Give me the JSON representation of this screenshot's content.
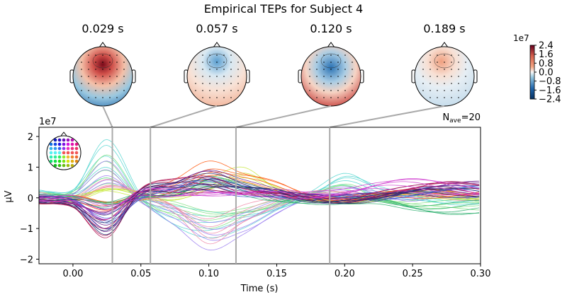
{
  "chart_data": {
    "type": "line",
    "title": "Empirical TEPs for Subject 4",
    "xlabel": "Time (s)",
    "ylabel": "µV",
    "y_scale_label": "1e7",
    "xlim": [
      -0.025,
      0.3
    ],
    "ylim": [
      -2.15,
      2.3
    ],
    "x_ticks": [
      "0.00",
      "0.05",
      "0.10",
      "0.15",
      "0.20",
      "0.25",
      "0.30"
    ],
    "y_ticks": [
      "−2",
      "−1",
      "0",
      "1",
      "2"
    ],
    "nave_label": "N",
    "nave_sub": "ave",
    "nave_value": "=20",
    "grid": false,
    "x": [
      -0.025,
      0,
      0.025,
      0.05,
      0.075,
      0.1,
      0.125,
      0.15,
      0.175,
      0.2,
      0.225,
      0.25,
      0.275,
      0.3
    ],
    "series": [
      {
        "color": "#55d6d0",
        "values": [
          0.25,
          0.2,
          1.9,
          0.1,
          -0.9,
          -1.3,
          -1.0,
          -0.4,
          0.2,
          0.8,
          0.3,
          0.1,
          -0.1,
          -0.2
        ]
      },
      {
        "color": "#7fe07f",
        "values": [
          0.1,
          0.1,
          1.4,
          0.0,
          -0.6,
          -1.0,
          -0.6,
          -0.2,
          0.1,
          0.4,
          0.0,
          -0.2,
          -0.3,
          -0.4
        ]
      },
      {
        "color": "#9a7cf0",
        "values": [
          0.0,
          0.1,
          1.2,
          -0.1,
          -0.9,
          -1.7,
          -1.2,
          -0.5,
          0.0,
          0.3,
          0.2,
          0.0,
          0.1,
          0.0
        ]
      },
      {
        "color": "#f08aa8",
        "values": [
          0.1,
          0.0,
          0.6,
          0.1,
          -0.5,
          -1.5,
          -0.8,
          -0.3,
          0.1,
          0.2,
          0.1,
          0.2,
          0.0,
          0.1
        ]
      },
      {
        "color": "#c7e83a",
        "values": [
          0.0,
          0.0,
          0.3,
          0.1,
          0.1,
          0.6,
          1.0,
          0.3,
          0.0,
          -0.1,
          0.0,
          0.1,
          0.2,
          0.1
        ]
      },
      {
        "color": "#ff5a10",
        "values": [
          -0.1,
          -0.1,
          -0.4,
          0.1,
          0.6,
          1.2,
          0.8,
          0.5,
          0.1,
          0.0,
          0.1,
          0.2,
          0.3,
          0.3
        ]
      },
      {
        "color": "#30b070",
        "values": [
          0.0,
          -0.1,
          -0.3,
          0.2,
          0.2,
          0.7,
          0.4,
          0.0,
          -0.1,
          -0.2,
          -0.2,
          -0.4,
          -0.5,
          -0.5
        ]
      },
      {
        "color": "#4060d0",
        "values": [
          -0.1,
          -0.2,
          -1.0,
          0.1,
          0.4,
          0.6,
          0.4,
          0.2,
          0.0,
          0.0,
          0.1,
          0.3,
          0.4,
          0.4
        ]
      },
      {
        "color": "#6a1a8a",
        "values": [
          -0.1,
          -0.2,
          -1.1,
          0.2,
          0.5,
          0.9,
          0.6,
          0.3,
          0.0,
          0.0,
          0.2,
          0.4,
          0.5,
          0.5
        ]
      },
      {
        "color": "#b01050",
        "values": [
          -0.2,
          -0.3,
          -1.3,
          0.3,
          0.6,
          0.7,
          0.3,
          0.1,
          -0.1,
          -0.1,
          0.2,
          0.4,
          0.5,
          0.4
        ]
      },
      {
        "color": "#203070",
        "values": [
          -0.1,
          -0.2,
          -1.2,
          0.2,
          0.5,
          0.8,
          0.5,
          0.2,
          -0.1,
          -0.1,
          0.0,
          0.2,
          0.3,
          0.3
        ]
      },
      {
        "color": "#d040d0",
        "values": [
          0.0,
          -0.1,
          -0.7,
          0.2,
          0.3,
          0.2,
          0.1,
          0.2,
          0.2,
          0.3,
          0.5,
          0.6,
          0.5,
          0.3
        ]
      }
    ]
  },
  "topomaps": [
    {
      "time_label": "0.029 s",
      "time": 0.029
    },
    {
      "time_label": "0.057 s",
      "time": 0.057
    },
    {
      "time_label": "0.120 s",
      "time": 0.12
    },
    {
      "time_label": "0.189 s",
      "time": 0.189
    }
  ],
  "colorbar": {
    "scale_label": "1e7",
    "ticks": [
      "2.4",
      "1.6",
      "0.8",
      "0.0",
      "−0.8",
      "−1.6",
      "−2.4"
    ],
    "range": [
      -2.4,
      2.4
    ],
    "colormap": "RdBu_r"
  }
}
